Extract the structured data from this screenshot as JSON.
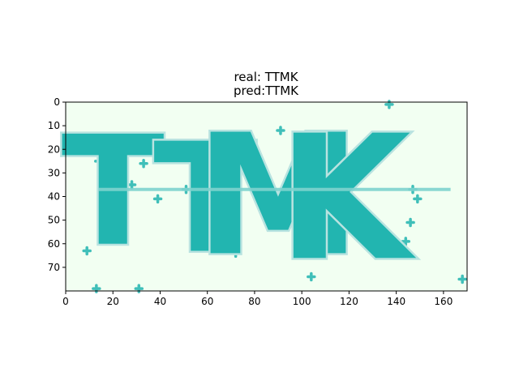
{
  "chart_data": {
    "type": "image",
    "title_line1": "real: TTMK",
    "title_line2": "pred:TTMK",
    "xlim": [
      0,
      170
    ],
    "ylim": [
      80,
      0
    ],
    "x_ticks": [
      0,
      20,
      40,
      60,
      80,
      100,
      120,
      140,
      160
    ],
    "y_ticks": [
      0,
      10,
      20,
      30,
      40,
      50,
      60,
      70
    ],
    "image_text": "TTMK",
    "background_color": "#f2fff2",
    "ink_color": "#22b5b0",
    "noise_points": [
      [
        7,
        18
      ],
      [
        14,
        25
      ],
      [
        33,
        26
      ],
      [
        39,
        41
      ],
      [
        51,
        37
      ],
      [
        66,
        40
      ],
      [
        70,
        25
      ],
      [
        70,
        53
      ],
      [
        72,
        64
      ],
      [
        9,
        63
      ],
      [
        13,
        79
      ],
      [
        31,
        79
      ],
      [
        137,
        1
      ],
      [
        135,
        18
      ],
      [
        147,
        37
      ],
      [
        149,
        41
      ],
      [
        146,
        51
      ],
      [
        144,
        59
      ],
      [
        104,
        74
      ],
      [
        98,
        64
      ],
      [
        104,
        40
      ],
      [
        168,
        75
      ],
      [
        91,
        12
      ],
      [
        28,
        35
      ]
    ],
    "glyphs": [
      {
        "char": "T",
        "x": 20,
        "y": 60,
        "size": 58
      },
      {
        "char": "T",
        "x": 59,
        "y": 63,
        "size": 58
      },
      {
        "char": "M",
        "x": 90,
        "y": 64,
        "size": 64
      },
      {
        "char": "K",
        "x": 118,
        "y": 66,
        "size": 66
      }
    ],
    "strike_line": {
      "x0": 14,
      "x1": 163,
      "y": 37
    }
  }
}
